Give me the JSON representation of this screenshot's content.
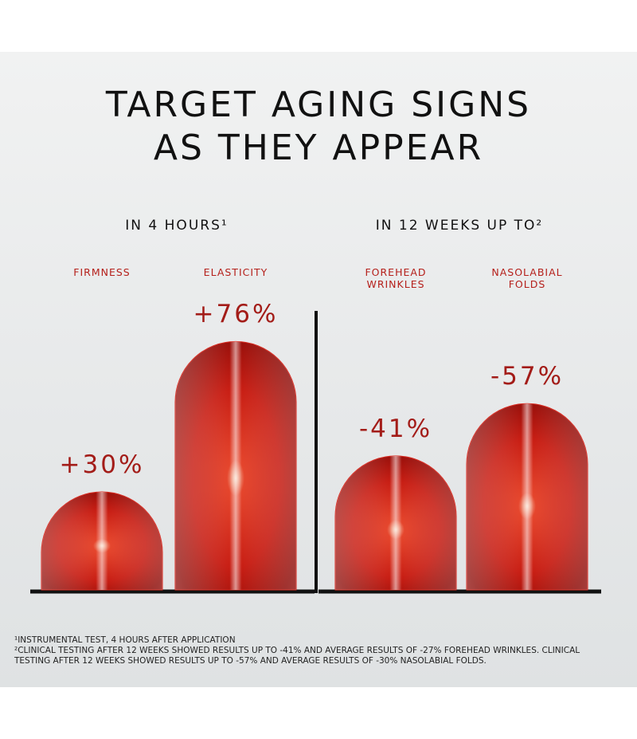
{
  "chart_data": {
    "type": "bar",
    "title": "TARGET AGING SIGNS AS THEY APPEAR",
    "groups": [
      "IN 4 HOURS¹",
      "IN 12 WEEKS UP TO²"
    ],
    "categories": [
      "FIRMNESS",
      "ELASTICITY",
      "FOREHEAD WRINKLES",
      "NASOLABIAL FOLDS"
    ],
    "values": [
      30,
      76,
      -41,
      -57
    ],
    "value_labels": [
      "+30%",
      "+76%",
      "-41%",
      "-57%"
    ],
    "color": "#d8261c",
    "footnotes": [
      "¹INSTRUMENTAL TEST, 4 HOURS AFTER APPLICATION",
      "²CLINICAL TESTING AFTER 12 WEEKS SHOWED RESULTS UP TO -41% AND AVERAGE RESULTS OF -27% FOREHEAD WRINKLES. CLINICAL TESTING AFTER 12 WEEKS SHOWED RESULTS UP TO -57% AND AVERAGE RESULTS OF -30% NASOLABIAL FOLDS."
    ]
  }
}
